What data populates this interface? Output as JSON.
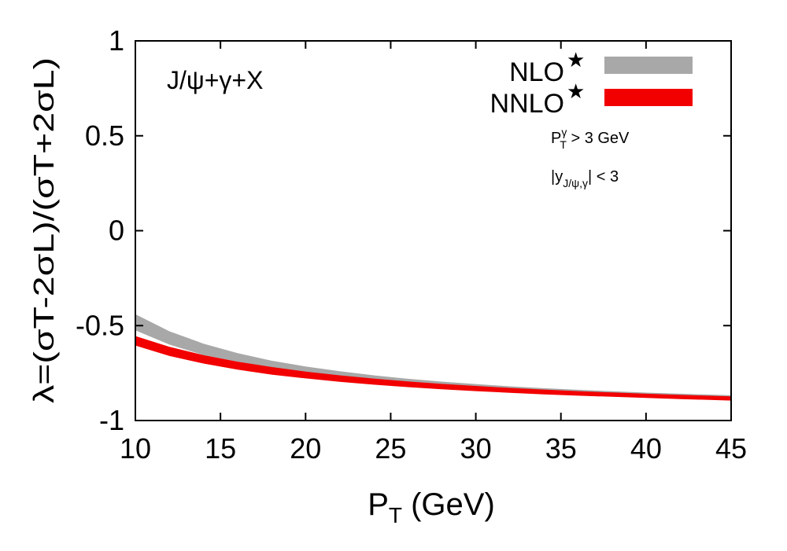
{
  "chart_data": {
    "type": "area",
    "title": "",
    "process_label": "J/ψ+γ+X",
    "xlabel": {
      "main": "P",
      "sub": "T",
      "unit": " (GeV)"
    },
    "ylabel": "λ=(σT-2σL)/(σT+2σL)",
    "xlim": [
      10,
      45
    ],
    "ylim": [
      -1,
      1
    ],
    "xticks": [
      10,
      15,
      20,
      25,
      30,
      35,
      40,
      45
    ],
    "yticks": [
      {
        "value": 1,
        "label": "1"
      },
      {
        "value": 0.5,
        "label": "0.5"
      },
      {
        "value": 0,
        "label": "0"
      },
      {
        "value": -0.5,
        "label": "-0.5"
      },
      {
        "value": -1,
        "label": "-1"
      }
    ],
    "legend_position": "top-right",
    "cuts": {
      "pt": {
        "main": "P",
        "sup": "γ",
        "sub": "T",
        "rest": " > 3  GeV"
      },
      "y": {
        "main": "|y",
        "sub": "J/ψ,γ",
        "rest": "| < 3"
      }
    },
    "series": [
      {
        "name": "NLO",
        "marker": "★",
        "color": "#a8a8a8",
        "x": [
          10,
          12,
          14,
          16,
          18,
          20,
          22,
          24,
          26,
          28,
          30,
          32,
          34,
          36,
          38,
          40,
          42,
          45
        ],
        "upper": [
          -0.44,
          -0.53,
          -0.595,
          -0.645,
          -0.685,
          -0.715,
          -0.74,
          -0.762,
          -0.78,
          -0.795,
          -0.808,
          -0.82,
          -0.83,
          -0.838,
          -0.846,
          -0.853,
          -0.859,
          -0.867
        ],
        "lower": [
          -0.525,
          -0.6,
          -0.655,
          -0.69,
          -0.72,
          -0.745,
          -0.765,
          -0.782,
          -0.797,
          -0.81,
          -0.821,
          -0.831,
          -0.84,
          -0.848,
          -0.855,
          -0.861,
          -0.867,
          -0.875
        ]
      },
      {
        "name": "NNLO",
        "marker": "★",
        "color": "#f20000",
        "x": [
          10,
          12,
          14,
          16,
          18,
          20,
          22,
          24,
          26,
          28,
          30,
          32,
          34,
          36,
          38,
          40,
          42,
          45
        ],
        "upper": [
          -0.555,
          -0.612,
          -0.655,
          -0.69,
          -0.718,
          -0.742,
          -0.762,
          -0.779,
          -0.794,
          -0.807,
          -0.818,
          -0.828,
          -0.837,
          -0.845,
          -0.852,
          -0.859,
          -0.865,
          -0.873
        ],
        "lower": [
          -0.605,
          -0.66,
          -0.7,
          -0.732,
          -0.758,
          -0.778,
          -0.796,
          -0.811,
          -0.824,
          -0.835,
          -0.845,
          -0.854,
          -0.862,
          -0.869,
          -0.875,
          -0.881,
          -0.887,
          -0.895
        ]
      }
    ]
  }
}
